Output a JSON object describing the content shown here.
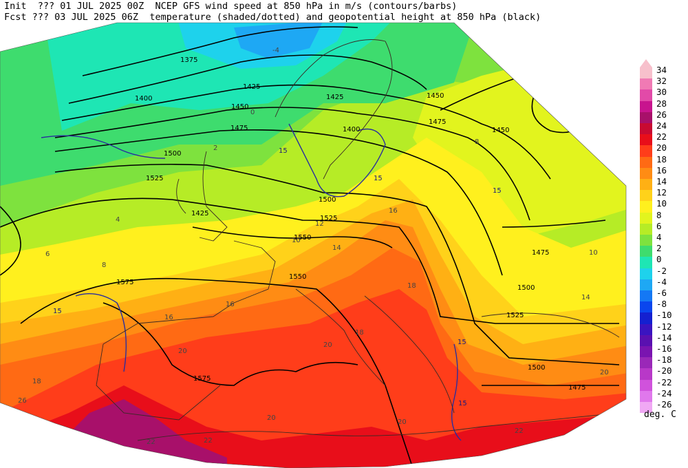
{
  "header": {
    "line1": "Init  ??? 01 JUL 2025 00Z  NCEP GFS wind speed at 850 hPa in m/s (contours/barbs)",
    "line2": "Fcst ??? 03 JUL 2025 06Z  temperature (shaded/dotted) and geopotential height at 850 hPa (black)"
  },
  "colorbar": {
    "units": "deg. C",
    "levels": [
      {
        "label": "34",
        "color": "#f7c0cc"
      },
      {
        "label": "32",
        "color": "#f07ab4"
      },
      {
        "label": "30",
        "color": "#e24aa8"
      },
      {
        "label": "28",
        "color": "#c8148e"
      },
      {
        "label": "26",
        "color": "#a8106a"
      },
      {
        "label": "24",
        "color": "#c80a32"
      },
      {
        "label": "22",
        "color": "#e80e1a"
      },
      {
        "label": "20",
        "color": "#ff3d1a"
      },
      {
        "label": "18",
        "color": "#ff6a14"
      },
      {
        "label": "16",
        "color": "#ff8c14"
      },
      {
        "label": "14",
        "color": "#ffb014"
      },
      {
        "label": "12",
        "color": "#ffd21a"
      },
      {
        "label": "10",
        "color": "#fff01e"
      },
      {
        "label": "8",
        "color": "#e2f41e"
      },
      {
        "label": "6",
        "color": "#b6ec26"
      },
      {
        "label": "4",
        "color": "#7ee23e"
      },
      {
        "label": "2",
        "color": "#3edc6e"
      },
      {
        "label": "0",
        "color": "#1ee6b4"
      },
      {
        "label": "-2",
        "color": "#1ed2ec"
      },
      {
        "label": "-4",
        "color": "#1ea8f4"
      },
      {
        "label": "-6",
        "color": "#1478f4"
      },
      {
        "label": "-8",
        "color": "#0a46ee"
      },
      {
        "label": "-10",
        "color": "#1420d0"
      },
      {
        "label": "-12",
        "color": "#3a14c0"
      },
      {
        "label": "-14",
        "color": "#5a10b0"
      },
      {
        "label": "-16",
        "color": "#7a14b0"
      },
      {
        "label": "-18",
        "color": "#9a28b8"
      },
      {
        "label": "-20",
        "color": "#b838c8"
      },
      {
        "label": "-22",
        "color": "#d052dc"
      },
      {
        "label": "-24",
        "color": "#e078ec"
      },
      {
        "label": "-26",
        "color": "#f0a8f4"
      }
    ]
  },
  "map": {
    "height_labels": [
      "1375",
      "1400",
      "1425",
      "1450",
      "1475",
      "1500",
      "1525",
      "1550",
      "1575",
      "1425",
      "1450",
      "1475",
      "1500",
      "1525",
      "1500",
      "1475",
      "1575",
      "1500",
      "1475",
      "1550",
      "1525",
      "1450",
      "1425",
      "1400"
    ],
    "wind_labels": [
      "15",
      "15",
      "15",
      "15",
      "15",
      "15"
    ],
    "temp_labels": [
      "-4",
      "0",
      "2",
      "4",
      "6",
      "8",
      "10",
      "12",
      "14",
      "16",
      "18",
      "20",
      "22",
      "26",
      "8",
      "10",
      "16",
      "18",
      "20",
      "20",
      "20",
      "22",
      "14",
      "16",
      "18",
      "20",
      "22"
    ]
  }
}
